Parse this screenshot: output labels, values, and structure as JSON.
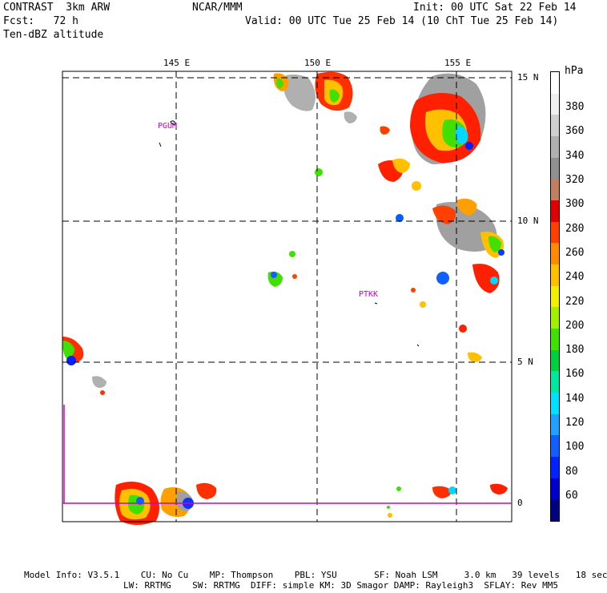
{
  "header": {
    "line1_left": "CONTRAST  3km ARW",
    "line1_mid": "NCAR/MMM",
    "line1_right": "Init: 00 UTC Sat 22 Feb 14",
    "line2_left": "Fcst:   72 h",
    "line2_right": "Valid: 00 UTC Tue 25 Feb 14 (10 ChT Tue 25 Feb 14)",
    "line3_left": "Ten-dBZ altitude"
  },
  "map": {
    "lon_labels": [
      "145 E",
      "150 E",
      "155 E"
    ],
    "lat_labels": [
      "15 N",
      "10 N",
      "5 N",
      "0"
    ],
    "stations": [
      "PGUM",
      "PTKK"
    ],
    "colors": {
      "frame": "#000000",
      "grid": "#000000",
      "coast": "#000000",
      "boundary": "#cc00cc"
    }
  },
  "colorbar": {
    "unit": "hPa",
    "labels": [
      "380",
      "360",
      "340",
      "320",
      "300",
      "280",
      "260",
      "240",
      "220",
      "200",
      "180",
      "160",
      "140",
      "120",
      "100",
      "80",
      "60"
    ],
    "colors": [
      "#000080",
      "#0000cc",
      "#0022ff",
      "#1060ff",
      "#20a0ff",
      "#00e0ff",
      "#00e8a0",
      "#00d040",
      "#40e000",
      "#a0f000",
      "#f0f000",
      "#ffc000",
      "#ff8c00",
      "#ff4000",
      "#e00000",
      "#c08060",
      "#909090",
      "#b0b0b0",
      "#d0d0d0",
      "#f0f0f0",
      "#ffffff"
    ]
  },
  "footer": {
    "line1": "Model Info: V3.5.1    CU: No Cu    MP: Thompson    PBL: YSU       SF: Noah LSM     3.0 km   39 levels   18 sec",
    "line2": "LW: RRTMG    SW: RRTMG  DIFF: simple KM: 3D Smagor DAMP: Rayleigh3  SFLAY: Rev MM5"
  }
}
